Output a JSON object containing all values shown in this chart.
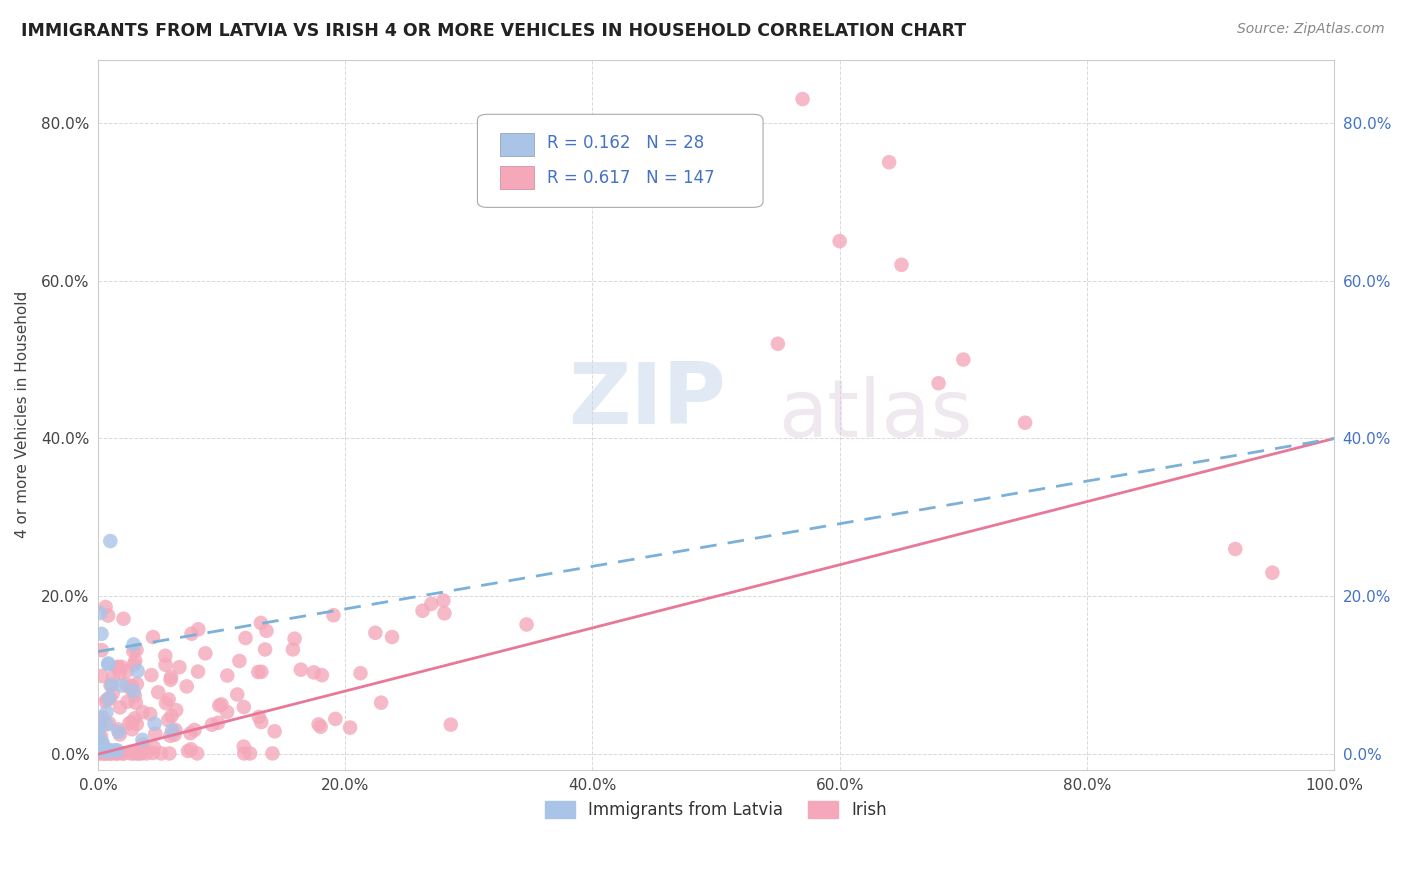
{
  "title": "IMMIGRANTS FROM LATVIA VS IRISH 4 OR MORE VEHICLES IN HOUSEHOLD CORRELATION CHART",
  "source": "Source: ZipAtlas.com",
  "ylabel": "4 or more Vehicles in Household",
  "xlim": [
    0.0,
    1.0
  ],
  "ylim": [
    -0.02,
    0.88
  ],
  "yticks": [
    0.0,
    0.2,
    0.4,
    0.6,
    0.8
  ],
  "ytick_labels": [
    "0.0%",
    "20.0%",
    "40.0%",
    "60.0%",
    "80.0%"
  ],
  "xticks": [
    0.0,
    0.2,
    0.4,
    0.6,
    0.8,
    1.0
  ],
  "xtick_labels": [
    "0.0%",
    "20.0%",
    "40.0%",
    "60.0%",
    "80.0%",
    "100.0%"
  ],
  "legend_R_latvia": "0.162",
  "legend_N_latvia": "28",
  "legend_R_irish": "0.617",
  "legend_N_irish": "147",
  "legend_label_latvia": "Immigrants from Latvia",
  "legend_label_irish": "Irish",
  "color_latvia": "#aac4e8",
  "color_irish": "#f4a8ba",
  "color_trend_latvia": "#7bb0d8",
  "color_trend_irish": "#e87898",
  "color_right_ticks": "#4472c4",
  "color_legend_text": "#4472c4",
  "watermark_zip": "ZIP",
  "watermark_atlas": "atlas",
  "background_color": "#ffffff",
  "grid_color": "#d0d0d0",
  "title_color": "#222222",
  "source_color": "#888888",
  "latvian_trend_start_y": 0.13,
  "latvian_trend_end_y": 0.4,
  "irish_trend_start_y": 0.0,
  "irish_trend_end_y": 0.4
}
